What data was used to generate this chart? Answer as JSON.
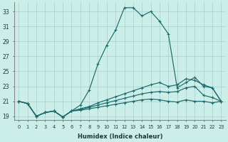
{
  "xlabel": "Humidex (Indice chaleur)",
  "ylabel": "",
  "background_color": "#cceee8",
  "grid_color": "#aacccc",
  "line_color": "#1a6b6b",
  "xlim": [
    -0.5,
    23.5
  ],
  "ylim": [
    18.5,
    34.2
  ],
  "xticks": [
    0,
    1,
    2,
    3,
    4,
    5,
    6,
    7,
    8,
    9,
    10,
    11,
    12,
    13,
    14,
    15,
    16,
    17,
    18,
    19,
    20,
    21,
    22,
    23
  ],
  "yticks": [
    19,
    21,
    23,
    25,
    27,
    29,
    31,
    33
  ],
  "series": [
    [
      21.0,
      20.7,
      19.0,
      19.5,
      19.7,
      18.9,
      19.7,
      20.5,
      22.5,
      26.0,
      28.5,
      30.5,
      33.5,
      33.5,
      32.4,
      33.0,
      31.7,
      30.0,
      22.8,
      23.5,
      24.2,
      23.0,
      22.8,
      21.0
    ],
    [
      21.0,
      20.7,
      19.0,
      19.5,
      19.7,
      18.9,
      19.7,
      20.0,
      20.3,
      20.8,
      21.2,
      21.6,
      22.0,
      22.4,
      22.8,
      23.2,
      23.5,
      23.0,
      23.2,
      24.0,
      23.8,
      23.2,
      22.8,
      21.0
    ],
    [
      21.0,
      20.7,
      19.0,
      19.5,
      19.7,
      18.9,
      19.7,
      19.9,
      20.2,
      20.5,
      20.8,
      21.1,
      21.4,
      21.7,
      22.0,
      22.2,
      22.3,
      22.2,
      22.3,
      22.8,
      23.0,
      21.8,
      21.5,
      21.0
    ],
    [
      21.0,
      20.7,
      19.0,
      19.5,
      19.7,
      18.9,
      19.7,
      19.8,
      20.0,
      20.2,
      20.4,
      20.6,
      20.8,
      21.0,
      21.2,
      21.3,
      21.2,
      21.0,
      20.9,
      21.2,
      21.0,
      21.0,
      20.8,
      21.0
    ]
  ]
}
